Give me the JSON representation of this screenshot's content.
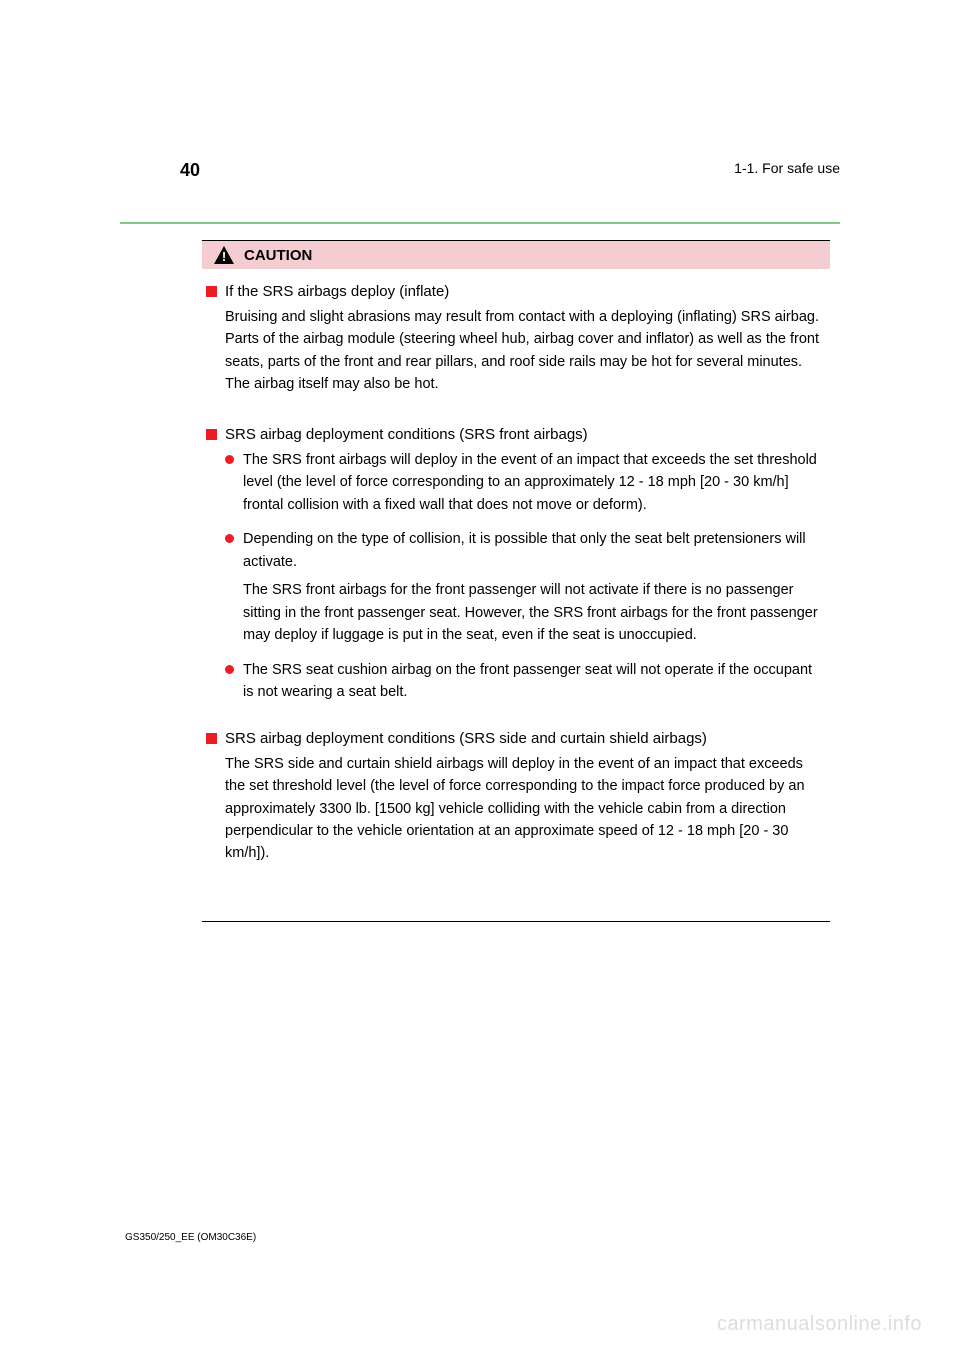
{
  "header": {
    "page_number": "40",
    "section": "1-1. For safe use"
  },
  "caution": {
    "label": "CAUTION",
    "sections": [
      {
        "heading": "If the SRS airbags deploy (inflate)",
        "body": "Bruising and slight abrasions may result from contact with a deploying (inflating) SRS airbag. Parts of the airbag module (steering wheel hub, airbag cover and inflator) as well as the front seats, parts of the front and rear pillars, and roof side rails may be hot for several minutes. The airbag itself may also be hot."
      },
      {
        "heading": "SRS airbag deployment conditions (SRS front airbags)",
        "bullets": [
          {
            "text_first": "The SRS front airbags will deploy in the event of an impact that exceeds the set threshold level (the level of force corresponding to an approximately 12 - 18 mph [20 - 30 km/h] frontal collision with a fixed wall that does not move or deform).",
            "text_second": ""
          },
          {
            "text_first": "Depending on the type of collision, it is possible that only the seat belt pretensioners will activate.",
            "text_second": "The SRS front airbags for the front passenger will not activate if there is no passenger sitting in the front passenger seat. However, the SRS front airbags for the front passenger may deploy if luggage is put in the seat, even if the seat is unoccupied."
          },
          {
            "text_first": "The SRS seat cushion airbag on the front passenger seat will not operate if the occupant is not wearing a seat belt.",
            "text_second": ""
          }
        ]
      },
      {
        "heading": "SRS airbag deployment conditions (SRS side and curtain shield airbags)",
        "body": "The SRS side and curtain shield airbags will deploy in the event of an impact that exceeds the set threshold level (the level of force corresponding to the impact force produced by an approximately 3300 lb. [1500 kg] vehicle colliding with the vehicle cabin from a direction perpendicular to the vehicle orientation at an approximate speed of 12 - 18 mph [20 - 30 km/h])."
      }
    ]
  },
  "footer_code": "GS350/250_EE (OM30C36E)",
  "watermark": "carmanualsonline.info",
  "colors": {
    "divider": "#7fc989",
    "caution_bg": "#f4cdd0",
    "bullet_red": "#ed1c24",
    "text": "#000000",
    "page_bg": "#ffffff",
    "watermark": "#dddddd"
  }
}
